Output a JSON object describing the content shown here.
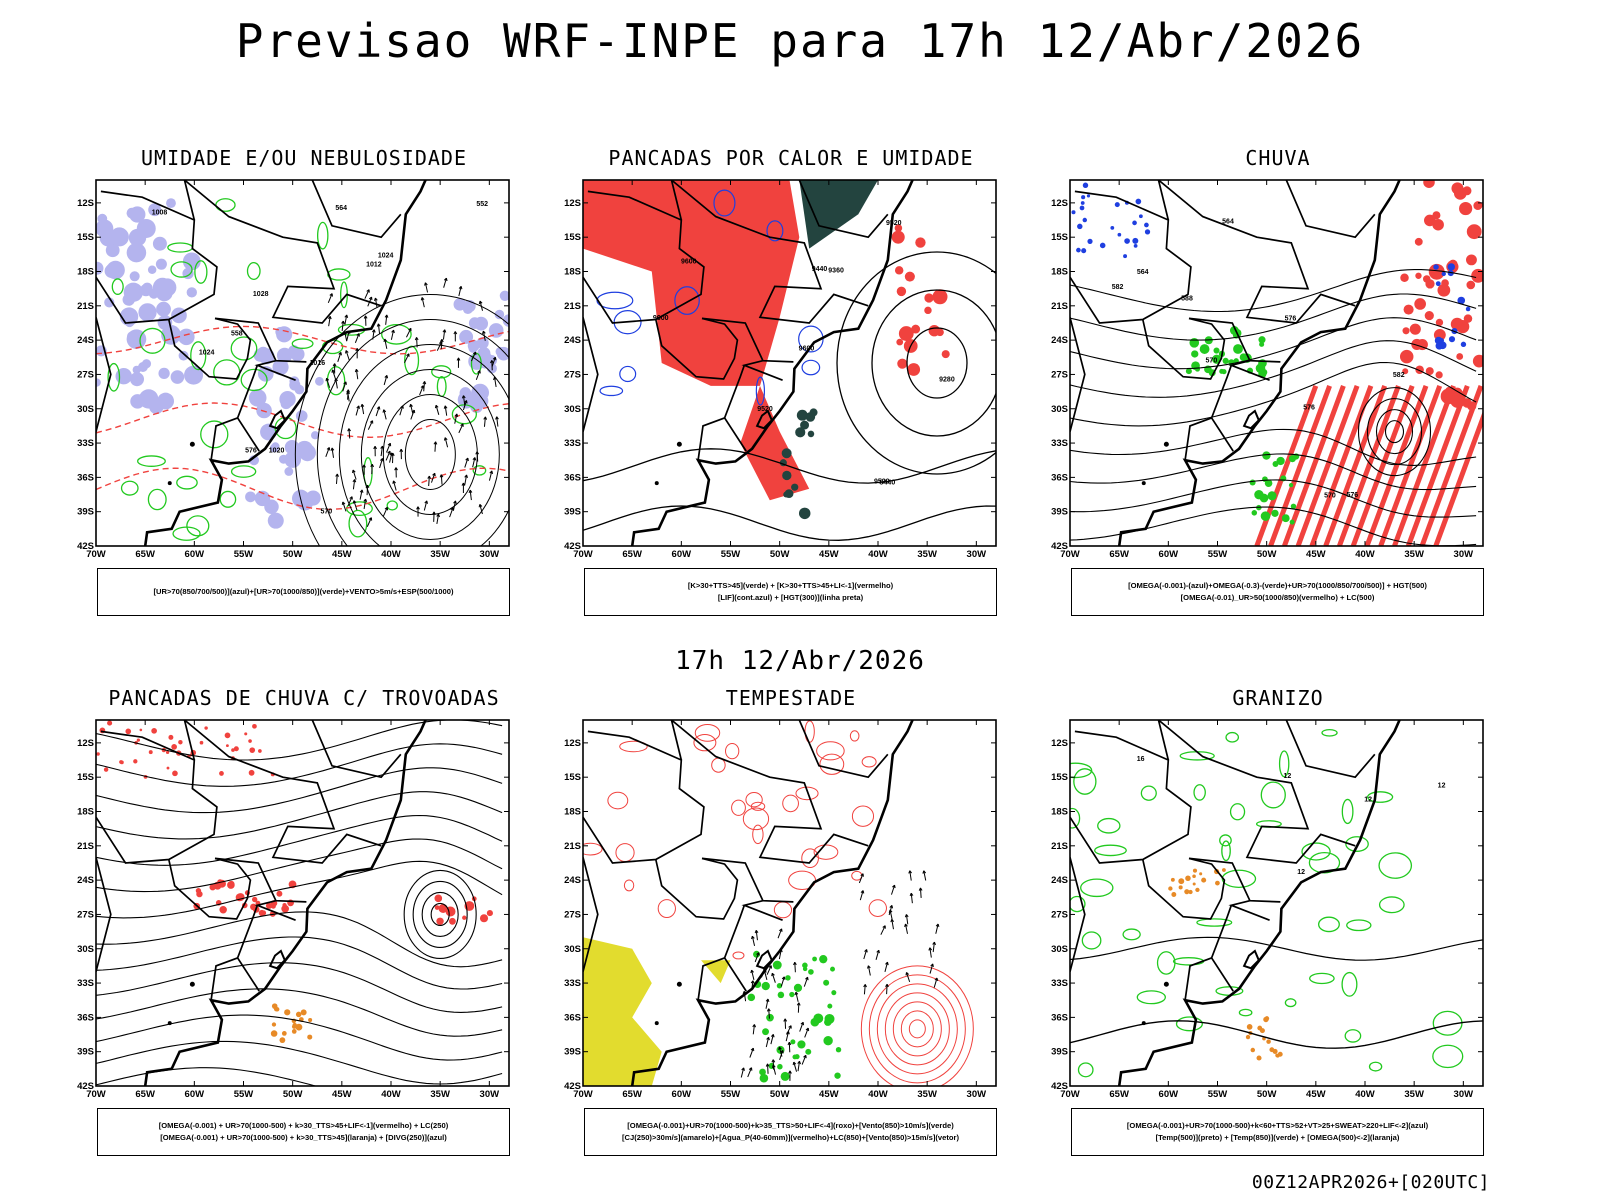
{
  "header": {
    "title": "Previsao WRF-INPE  para 17h 12/Abr/2026",
    "mid_stamp": "17h 12/Abr/2026",
    "run_stamp": "00Z12APR2026+[020UTC]"
  },
  "axes": {
    "lat_ticks": [
      "12S",
      "15S",
      "18S",
      "21S",
      "24S",
      "27S",
      "30S",
      "33S",
      "36S",
      "39S",
      "42S"
    ],
    "lon_ticks": [
      "70W",
      "65W",
      "60W",
      "55W",
      "50W",
      "45W",
      "40W",
      "35W",
      "30W"
    ]
  },
  "panels": [
    {
      "id": "umidade",
      "title": "UMIDADE E/OU NEBULOSIDADE",
      "caption": [
        "[UR>70(850/700/500)](azul)+[UR>70(1000/850)](verde)+VENTO>5m/s+ESP(500/1000)"
      ],
      "labels": [
        "1008",
        "1012",
        "1016",
        "1020",
        "1024",
        "1028",
        "1024",
        "576",
        "570",
        "564",
        "558",
        "552"
      ]
    },
    {
      "id": "pancadas-calor",
      "title": "PANCADAS POR CALOR E UMIDADE",
      "caption": [
        "[K>30+TTS>45](verde) + [K>30+TTS>45+LI<-1](vermelho)",
        "[LIF](cont.azul) + [HGT(300)](linha preta)"
      ],
      "labels": [
        "9600",
        "9600",
        "9520",
        "9600",
        "9520",
        "9440",
        "9440",
        "9360",
        "9520",
        "9280"
      ]
    },
    {
      "id": "chuva",
      "title": "CHUVA",
      "caption": [
        "[OMEGA(-0.001)-(azul)+OMEGA(-0.3)-(verde)+UR>70(1000/850/700/500)] + HGT(500)",
        "[OMEGA(-0.01)_UR>50(1000/850)(vermelho) + LC(500)"
      ],
      "labels": [
        "588",
        "582",
        "576",
        "570",
        "564",
        "576",
        "582",
        "576",
        "570",
        "564"
      ]
    },
    {
      "id": "trovoadas",
      "title": "PANCADAS DE CHUVA C/ TROVOADAS",
      "caption": [
        "[OMEGA(-0.001) + UR>70(1000-500) + k>30_TTS>45+LIF<-1](vermelho) + LC(250)",
        "[OMEGA(-0.001) + UR>70(1000-500) + k>30_TTS>45](laranja) + [DIVG(250)](azul)"
      ],
      "labels": []
    },
    {
      "id": "tempestade",
      "title": "TEMPESTADE",
      "caption": [
        "[OMEGA(-0.001)+UR>70(1000-500)+k>35_TTS>50+LIF<-4](roxo)+[Vento(850)>10m/s](verde)",
        "[CJ(250)>30m/s](amarelo)+[Agua_P(40-60mm)](vermelho)+LC(850)+[Vento(850)>15m/s](vetor)"
      ],
      "labels": []
    },
    {
      "id": "granizo",
      "title": "GRANIZO",
      "caption": [
        "[OMEGA(-0.001)+UR>70(1000-500)+k<60+TTS>52+VT>25+SWEAT>220+LIF<-2](azul)",
        "[Temp(500)](preto) + [Temp(850)](verde) + [OMEGA(500)<-2](laranja)"
      ],
      "labels": [
        "12",
        "12",
        "12",
        "16",
        "12"
      ]
    }
  ],
  "colors": {
    "red": "#f0423e",
    "green": "#22c91f",
    "blue": "#1f3fe0",
    "lavender": "#b4b4ee",
    "dark_teal": "#23443f",
    "orange": "#e78a27",
    "yellow": "#e2dc2e",
    "purple": "#a020f0",
    "black": "#000000"
  }
}
